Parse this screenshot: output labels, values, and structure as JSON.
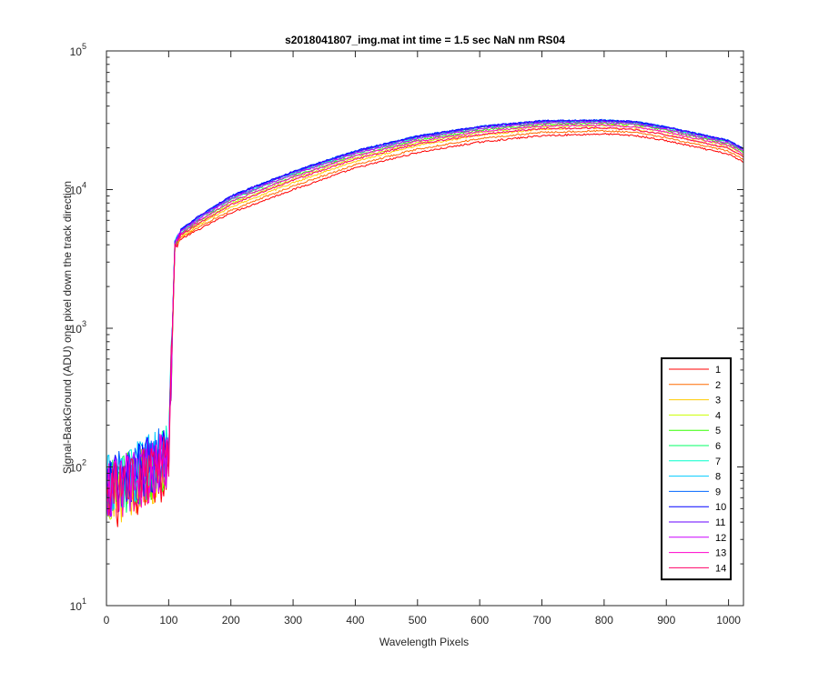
{
  "chart_data": {
    "type": "line",
    "title": "s2018041807_img.mat int time = 1.5 sec  NaN nm RS04",
    "xlabel": "Wavelength Pixels",
    "ylabel": "Signal-BackGround (ADU) one pixel down the track direction",
    "xlim": [
      0,
      1024
    ],
    "ylim": [
      10,
      100000
    ],
    "yscale": "log",
    "x_ticks": [
      "0",
      "100",
      "200",
      "300",
      "400",
      "500",
      "600",
      "700",
      "800",
      "900",
      "1000"
    ],
    "y_ticks": [
      {
        "base": "10",
        "exp": "1",
        "value": 10
      },
      {
        "base": "10",
        "exp": "2",
        "value": 100
      },
      {
        "base": "10",
        "exp": "3",
        "value": 1000
      },
      {
        "base": "10",
        "exp": "4",
        "value": 10000
      },
      {
        "base": "10",
        "exp": "5",
        "value": 100000
      }
    ],
    "legend_position": "bottom-right",
    "x": [
      0,
      50,
      100,
      110,
      120,
      150,
      200,
      300,
      400,
      500,
      600,
      700,
      800,
      850,
      900,
      1000,
      1024
    ],
    "series": [
      {
        "name": "1",
        "color": "#ff0000",
        "values": [
          55,
          70,
          100,
          3800,
          4400,
          5200,
          6800,
          10000,
          14300,
          18500,
          22000,
          24500,
          25200,
          24500,
          22500,
          18000,
          15800
        ]
      },
      {
        "name": "2",
        "color": "#ff6a00",
        "values": [
          58,
          72,
          103,
          3850,
          4500,
          5400,
          7100,
          10600,
          15100,
          19600,
          23300,
          25900,
          26500,
          25800,
          23600,
          18900,
          16500
        ]
      },
      {
        "name": "3",
        "color": "#ffcc00",
        "values": [
          60,
          75,
          106,
          3900,
          4600,
          5600,
          7500,
          11200,
          16000,
          20800,
          24600,
          27300,
          27900,
          27200,
          24800,
          19900,
          17300
        ]
      },
      {
        "name": "4",
        "color": "#ccff00",
        "values": [
          63,
          78,
          110,
          3950,
          4700,
          5800,
          7900,
          11900,
          16900,
          21800,
          25800,
          28500,
          29100,
          28400,
          25900,
          20700,
          18000
        ]
      },
      {
        "name": "5",
        "color": "#33ff00",
        "values": [
          65,
          82,
          114,
          4000,
          4800,
          6000,
          8200,
          12400,
          17600,
          22700,
          26800,
          29600,
          30100,
          29300,
          26800,
          21400,
          18600
        ]
      },
      {
        "name": "6",
        "color": "#00ff66",
        "values": [
          68,
          85,
          118,
          4050,
          4900,
          6200,
          8500,
          12900,
          18200,
          23400,
          27600,
          30400,
          30900,
          30000,
          27500,
          22000,
          19100
        ]
      },
      {
        "name": "7",
        "color": "#00ffcc",
        "values": [
          72,
          90,
          122,
          4100,
          5000,
          6300,
          8700,
          13200,
          18600,
          23900,
          28100,
          30900,
          31300,
          30400,
          27900,
          22300,
          19400
        ]
      },
      {
        "name": "8",
        "color": "#00ccff",
        "values": [
          74,
          92,
          125,
          4150,
          5100,
          6400,
          8900,
          13400,
          18900,
          24200,
          28400,
          31200,
          31600,
          30700,
          28200,
          22500,
          19600
        ]
      },
      {
        "name": "9",
        "color": "#0066ff",
        "values": [
          75,
          93,
          127,
          4200,
          5150,
          6450,
          9000,
          13500,
          19000,
          24300,
          28500,
          31300,
          31700,
          30800,
          28300,
          22600,
          19700
        ]
      },
      {
        "name": "10",
        "color": "#0000ff",
        "values": [
          73,
          91,
          126,
          4200,
          5200,
          6500,
          9000,
          13500,
          19000,
          24300,
          28500,
          31300,
          31700,
          30800,
          28300,
          22600,
          19700
        ]
      },
      {
        "name": "11",
        "color": "#6600ff",
        "values": [
          70,
          88,
          123,
          4150,
          5100,
          6400,
          8850,
          13300,
          18700,
          24000,
          28200,
          31000,
          31400,
          30500,
          28000,
          22400,
          19500
        ]
      },
      {
        "name": "12",
        "color": "#cc00ff",
        "values": [
          67,
          84,
          119,
          4100,
          5000,
          6250,
          8600,
          12900,
          18200,
          23300,
          27400,
          30100,
          30500,
          29600,
          27200,
          21700,
          18900
        ]
      },
      {
        "name": "13",
        "color": "#ff00cc",
        "values": [
          63,
          80,
          114,
          4000,
          4850,
          6000,
          8200,
          12300,
          17400,
          22300,
          26200,
          28800,
          29200,
          28300,
          26000,
          20800,
          18100
        ]
      },
      {
        "name": "14",
        "color": "#ff0066",
        "values": [
          60,
          76,
          110,
          3900,
          4700,
          5750,
          7800,
          11700,
          16600,
          21300,
          25000,
          27500,
          27900,
          27000,
          24800,
          19900,
          17300
        ]
      }
    ]
  }
}
